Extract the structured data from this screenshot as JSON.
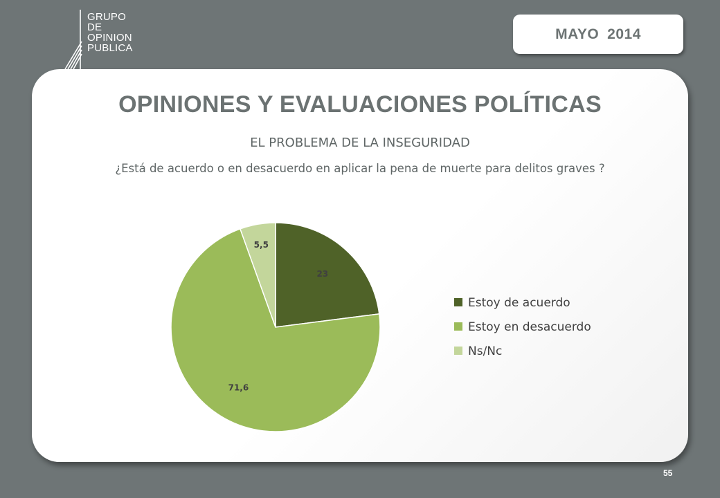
{
  "brand": {
    "logo_lines": [
      "GRUPO",
      "DE",
      "OPINION",
      "PUBLICA"
    ]
  },
  "date_badge": {
    "month": "MAYO",
    "year": "2014"
  },
  "header": {
    "title": "OPINIONES Y EVALUACIONES POLÍTICAS",
    "subtitle": "EL PROBLEMA DE LA INSEGURIDAD",
    "question": "¿Está de acuerdo o en desacuerdo en aplicar la pena de muerte para delitos graves ?"
  },
  "chart_data": {
    "type": "pie",
    "legend_position": "right",
    "slices": [
      {
        "label": "Estoy de acuerdo",
        "value": 23,
        "display": "23",
        "color": "#4f6228"
      },
      {
        "label": "Estoy en desacuerdo",
        "value": 71.6,
        "display": "71,6",
        "color": "#9bbb59"
      },
      {
        "label": "Ns/Nc",
        "value": 5.5,
        "display": "5,5",
        "color": "#c3d69b"
      }
    ]
  },
  "footer": {
    "page_number": "55"
  }
}
